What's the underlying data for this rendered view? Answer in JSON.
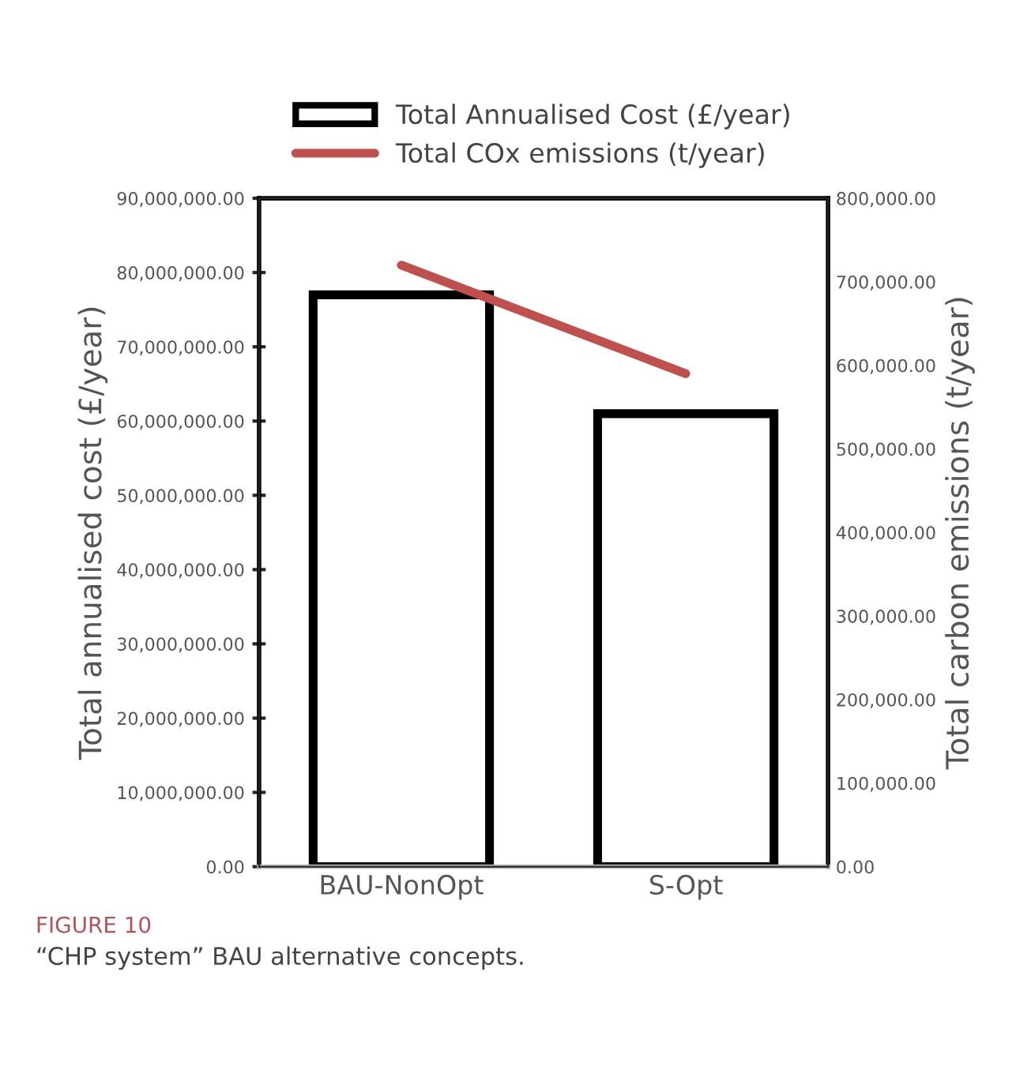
{
  "chart_data": {
    "type": "bar",
    "categories": [
      "BAU-NonOpt",
      "S-Opt"
    ],
    "series": [
      {
        "name": "Total Annualised Cost (£/year)",
        "color": "#000000",
        "values": [
          77000000,
          61000000
        ]
      },
      {
        "name": "Total COx emissions (t/year)",
        "type": "line",
        "color": "#c0504d",
        "axis": "y2",
        "values": [
          720000,
          590000
        ]
      }
    ],
    "ylabel": "Total annualised cost (£/year)",
    "y2label": "Total carbon emissions (t/year)",
    "ylim": [
      0,
      90000000
    ],
    "yticks": [
      {
        "value": 0,
        "label": "0.00"
      },
      {
        "value": 10000000,
        "label": "10,000,000.00"
      },
      {
        "value": 20000000,
        "label": "20,000,000.00"
      },
      {
        "value": 30000000,
        "label": "30,000,000.00"
      },
      {
        "value": 40000000,
        "label": "40,000,000.00"
      },
      {
        "value": 50000000,
        "label": "50,000,000.00"
      },
      {
        "value": 60000000,
        "label": "60,000,000.00"
      },
      {
        "value": 70000000,
        "label": "70,000,000.00"
      },
      {
        "value": 80000000,
        "label": "80,000,000.00"
      },
      {
        "value": 90000000,
        "label": "90,000,000.00"
      }
    ],
    "y2lim": [
      0,
      800000
    ],
    "y2ticks": [
      {
        "value": 0,
        "label": "0.00"
      },
      {
        "value": 100000,
        "label": "100,000.00"
      },
      {
        "value": 200000,
        "label": "200,000.00"
      },
      {
        "value": 300000,
        "label": "300,000.00"
      },
      {
        "value": 400000,
        "label": "400,000.00"
      },
      {
        "value": 500000,
        "label": "500,000.00"
      },
      {
        "value": 600000,
        "label": "600,000.00"
      },
      {
        "value": 700000,
        "label": "700,000.00"
      },
      {
        "value": 800000,
        "label": "800,000.00"
      }
    ],
    "legend": "top",
    "grid": false,
    "annotations": [
      "FIGURE 10",
      "“CHP system” BAU alternative concepts."
    ]
  }
}
